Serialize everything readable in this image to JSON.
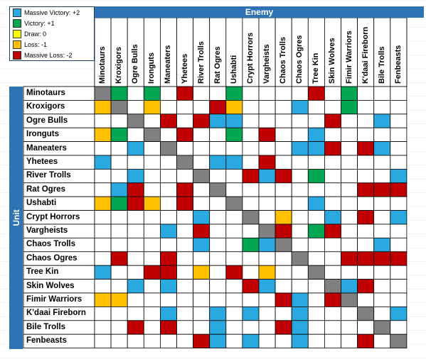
{
  "legend": [
    {
      "label": "Massive Victory: +2",
      "score": 2
    },
    {
      "label": "Victory: +1",
      "score": 1
    },
    {
      "label": "Draw: 0",
      "score": 0
    },
    {
      "label": "Loss: -1",
      "score": -1
    },
    {
      "label": "Massive Loss: -2",
      "score": -2
    }
  ],
  "colors": {
    "massive_victory": "#2aa9e0",
    "victory": "#00a651",
    "draw": "#ffff00",
    "loss": "#ffc000",
    "massive_loss": "#c00000",
    "mirror": "#808080",
    "header": "#2e74b5"
  },
  "headers": {
    "enemy": "Enemy",
    "unit": "Unit"
  },
  "enemies": [
    "Minotaurs",
    "Kroxigors",
    "Ogre Bulls",
    "Ironguts",
    "Maneaters",
    "Yhetees",
    "River Trolls",
    "Rat Ogres",
    "Ushabti",
    "Crypt Horrors",
    "Vargheists",
    "Chaos Trolls",
    "Chaos Ogres",
    "Tree Kin",
    "Skin Wolves",
    "Fimir Warriors",
    "K'daai Fireborn",
    "Bile Trolls",
    "Fenbeasts"
  ],
  "units": [
    "Minotaurs",
    "Kroxigors",
    "Ogre Bulls",
    "Ironguts",
    "Maneaters",
    "Yhetees",
    "River Trolls",
    "Rat Ogres",
    "Ushabti",
    "Crypt Horrors",
    "Vargheists",
    "Chaos Trolls",
    "Chaos Ogres",
    "Tree Kin",
    "Skin Wolves",
    "Fimir Warriors",
    "K'daai Fireborn",
    "Bile Trolls",
    "Fenbeasts"
  ],
  "matrix": [
    [
      "X",
      1,
      null,
      1,
      null,
      -2,
      null,
      null,
      1,
      null,
      null,
      null,
      null,
      -2,
      null,
      1,
      null,
      null,
      null
    ],
    [
      -1,
      "X",
      null,
      -1,
      null,
      null,
      null,
      -2,
      -1,
      null,
      null,
      null,
      2,
      null,
      null,
      1,
      null,
      null,
      null
    ],
    [
      null,
      null,
      "X",
      null,
      -2,
      null,
      -2,
      2,
      2,
      null,
      null,
      null,
      null,
      null,
      -2,
      null,
      null,
      2,
      null
    ],
    [
      -1,
      1,
      null,
      "X",
      null,
      -2,
      null,
      null,
      1,
      null,
      -2,
      null,
      null,
      2,
      null,
      null,
      null,
      null,
      null
    ],
    [
      null,
      null,
      2,
      null,
      "X",
      null,
      null,
      null,
      null,
      null,
      null,
      null,
      2,
      2,
      -2,
      null,
      -2,
      2,
      null
    ],
    [
      2,
      null,
      null,
      null,
      null,
      "X",
      null,
      2,
      2,
      null,
      -2,
      null,
      null,
      null,
      null,
      null,
      null,
      null,
      null
    ],
    [
      null,
      null,
      2,
      null,
      null,
      null,
      "X",
      null,
      null,
      -2,
      2,
      -2,
      null,
      1,
      null,
      null,
      null,
      null,
      2
    ],
    [
      null,
      2,
      -2,
      null,
      null,
      -2,
      null,
      "X",
      null,
      null,
      null,
      null,
      null,
      null,
      null,
      null,
      -2,
      -2,
      -2
    ],
    [
      -1,
      1,
      -2,
      -1,
      null,
      -2,
      null,
      null,
      "X",
      null,
      null,
      null,
      null,
      2,
      null,
      null,
      null,
      null,
      null
    ],
    [
      null,
      null,
      null,
      null,
      null,
      null,
      2,
      null,
      null,
      "X",
      null,
      -1,
      null,
      null,
      2,
      null,
      -2,
      null,
      2
    ],
    [
      null,
      null,
      null,
      null,
      2,
      null,
      -2,
      null,
      null,
      null,
      "X",
      -2,
      null,
      1,
      -2,
      null,
      null,
      null,
      null
    ],
    [
      null,
      null,
      null,
      null,
      null,
      null,
      2,
      null,
      null,
      1,
      2,
      "X",
      null,
      null,
      null,
      null,
      null,
      2,
      null
    ],
    [
      null,
      -2,
      null,
      null,
      -2,
      null,
      null,
      null,
      null,
      null,
      null,
      null,
      "X",
      null,
      null,
      -2,
      -2,
      -2,
      -2
    ],
    [
      2,
      null,
      null,
      -2,
      -2,
      null,
      -1,
      null,
      -2,
      null,
      -1,
      null,
      null,
      "X",
      null,
      null,
      null,
      null,
      null
    ],
    [
      null,
      null,
      2,
      null,
      2,
      null,
      null,
      null,
      null,
      -2,
      2,
      null,
      null,
      null,
      "X",
      2,
      -2,
      null,
      null
    ],
    [
      -1,
      -1,
      null,
      null,
      null,
      null,
      null,
      null,
      null,
      null,
      null,
      -2,
      2,
      null,
      -2,
      "X",
      null,
      null,
      null
    ],
    [
      null,
      null,
      null,
      null,
      2,
      null,
      null,
      2,
      null,
      2,
      null,
      null,
      2,
      null,
      null,
      null,
      "X",
      null,
      2
    ],
    [
      null,
      null,
      -2,
      null,
      -2,
      null,
      null,
      2,
      null,
      null,
      null,
      -2,
      2,
      null,
      null,
      null,
      null,
      "X",
      null
    ],
    [
      null,
      null,
      null,
      null,
      null,
      null,
      -2,
      2,
      null,
      2,
      null,
      null,
      2,
      null,
      null,
      null,
      -2,
      null,
      "X"
    ]
  ]
}
